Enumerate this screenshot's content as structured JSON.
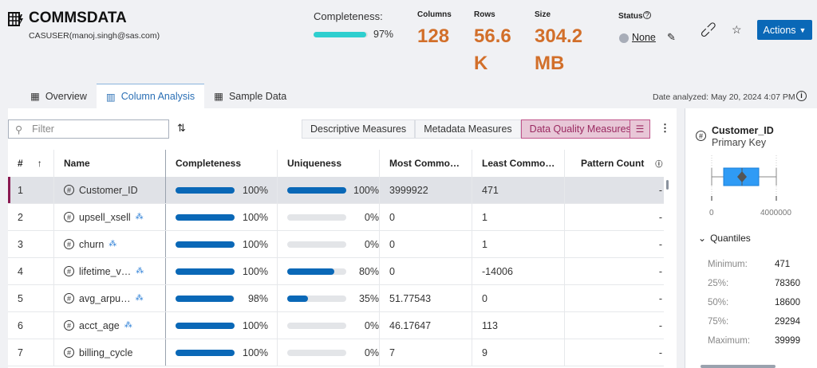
{
  "header": {
    "title": "COMMSDATA",
    "user": "CASUSER(manoj.singh@sas.com)",
    "completeness_label": "Completeness:",
    "completeness_pct": 97,
    "completeness_text": "97%",
    "stats": [
      {
        "label": "Columns",
        "value": "128"
      },
      {
        "label": "Rows",
        "value": "56.6 K"
      },
      {
        "label": "Size",
        "value": "304.2 MB"
      }
    ],
    "status_label": "Status",
    "status_value": "None",
    "actions_label": "Actions"
  },
  "tabs": [
    {
      "label": "Overview"
    },
    {
      "label": "Column Analysis"
    },
    {
      "label": "Sample Data"
    }
  ],
  "date_analyzed": "Date analyzed: May 20, 2024 4:07 PM",
  "filter_placeholder": "Filter",
  "measures": [
    "Descriptive Measures",
    "Metadata Measures",
    "Data Quality Measures"
  ],
  "table": {
    "headers": [
      "#",
      "Name",
      "Completeness",
      "Uniqueness",
      "Most Commo…",
      "Least Commo…",
      "Pattern Count"
    ],
    "rows": [
      {
        "n": "1",
        "name": "Customer_ID",
        "cls": false,
        "comp": 100,
        "comp_t": "100%",
        "uniq": 100,
        "uniq_t": "100%",
        "most": "3999922",
        "least": "471",
        "pattern": "-"
      },
      {
        "n": "2",
        "name": "upsell_xsell",
        "cls": true,
        "comp": 100,
        "comp_t": "100%",
        "uniq": 0,
        "uniq_t": "0%",
        "most": "0",
        "least": "1",
        "pattern": "-"
      },
      {
        "n": "3",
        "name": "churn",
        "cls": true,
        "comp": 100,
        "comp_t": "100%",
        "uniq": 0,
        "uniq_t": "0%",
        "most": "0",
        "least": "1",
        "pattern": "-"
      },
      {
        "n": "4",
        "name": "lifetime_v…",
        "cls": true,
        "comp": 100,
        "comp_t": "100%",
        "uniq": 80,
        "uniq_t": "80%",
        "most": "0",
        "least": "-14006",
        "pattern": "-"
      },
      {
        "n": "5",
        "name": "avg_arpu…",
        "cls": true,
        "comp": 98,
        "comp_t": "98%",
        "uniq": 35,
        "uniq_t": "35%",
        "most": "51.77543",
        "least": "0",
        "pattern": "-"
      },
      {
        "n": "6",
        "name": "acct_age",
        "cls": true,
        "comp": 100,
        "comp_t": "100%",
        "uniq": 0,
        "uniq_t": "0%",
        "most": "46.17647",
        "least": "113",
        "pattern": "-"
      },
      {
        "n": "7",
        "name": "billing_cycle",
        "cls": false,
        "comp": 100,
        "comp_t": "100%",
        "uniq": 0,
        "uniq_t": "0%",
        "most": "7",
        "least": "9",
        "pattern": "-"
      }
    ]
  },
  "detail": {
    "name": "Customer_ID",
    "role": "Primary Key",
    "axis_min": "0",
    "axis_max": "4000000",
    "quantiles_label": "Quantiles",
    "quantiles": [
      {
        "label": "Minimum:",
        "value": "471"
      },
      {
        "label": "25%:",
        "value": "78360"
      },
      {
        "label": "50%:",
        "value": "18600"
      },
      {
        "label": "75%:",
        "value": "29294"
      },
      {
        "label": "Maximum:",
        "value": "39999"
      }
    ]
  },
  "colors": {
    "accent": "#0a68b7",
    "stat": "#d26f2a",
    "selected": "#8a1a52"
  }
}
